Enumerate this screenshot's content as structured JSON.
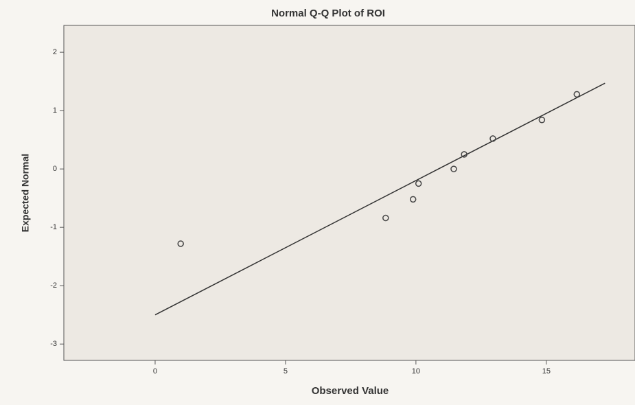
{
  "chart_data": {
    "type": "scatter",
    "title": "Normal Q-Q Plot of ROI",
    "x_label": "Observed Value",
    "y_label": "Expected Normal",
    "x": [
      0.98,
      8.84,
      9.89,
      10.1,
      11.45,
      11.85,
      12.95,
      14.83,
      16.17
    ],
    "values": [
      -1.28,
      -0.84,
      -0.52,
      -0.25,
      0,
      0.25,
      0.52,
      0.84,
      1.28
    ],
    "line": {
      "x": [
        0,
        17.25
      ],
      "y": [
        -2.5,
        1.47
      ]
    },
    "xlim": [
      -3.5,
      18.4
    ],
    "ylim": [
      -3.28,
      2.46
    ],
    "xticks": [
      0,
      5,
      10,
      15
    ],
    "yticks": [
      -3,
      -2,
      -1,
      0,
      1,
      2
    ],
    "color": "#444444",
    "grid": false
  }
}
